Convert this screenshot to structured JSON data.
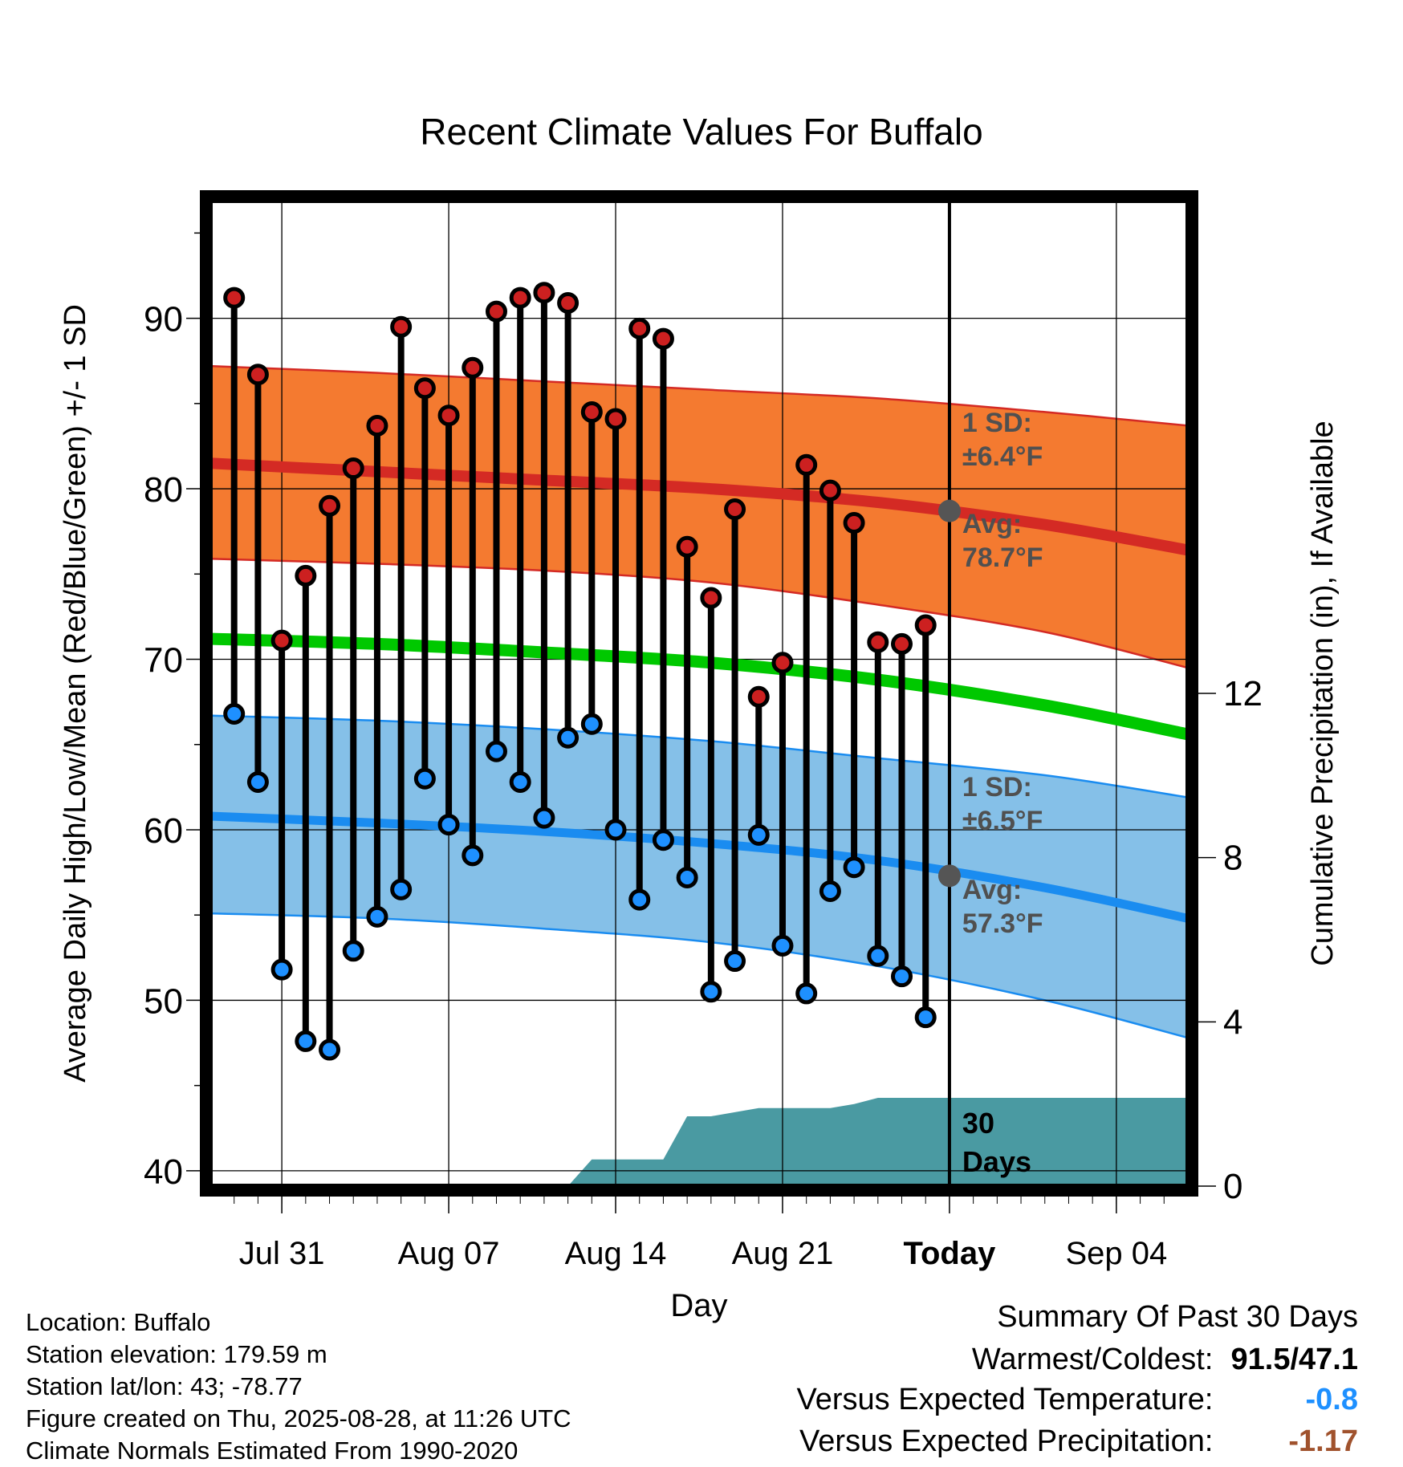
{
  "chart_data": {
    "type": "line",
    "title": "Recent Climate Values For Buffalo",
    "xlabel": "Day",
    "ylabel": "Average Daily High/Low/Mean (Red/Blue/Green) +/- 1 SD",
    "y2label": "Cumulative Precipitation (in), If Available",
    "ylim": [
      39.1,
      96.9
    ],
    "y2lim": [
      0,
      24
    ],
    "y2_ticks": [
      0,
      4,
      8,
      12
    ],
    "y_ticks": [
      40,
      50,
      60,
      70,
      80,
      90
    ],
    "x_range": [
      "2025-07-28",
      "2025-09-07"
    ],
    "x_ticks": [
      {
        "date": "2025-07-31",
        "label": "Jul 31"
      },
      {
        "date": "2025-08-07",
        "label": "Aug 07"
      },
      {
        "date": "2025-08-14",
        "label": "Aug 14"
      },
      {
        "date": "2025-08-21",
        "label": "Aug 21"
      },
      {
        "date": "2025-08-28",
        "label": "Today"
      },
      {
        "date": "2025-09-04",
        "label": "Sep 04"
      }
    ],
    "today": "2025-08-28",
    "grid": true,
    "observed": {
      "dates": [
        "2025-07-29",
        "2025-07-30",
        "2025-07-31",
        "2025-08-01",
        "2025-08-02",
        "2025-08-03",
        "2025-08-04",
        "2025-08-05",
        "2025-08-06",
        "2025-08-07",
        "2025-08-08",
        "2025-08-09",
        "2025-08-10",
        "2025-08-11",
        "2025-08-12",
        "2025-08-13",
        "2025-08-14",
        "2025-08-15",
        "2025-08-16",
        "2025-08-17",
        "2025-08-18",
        "2025-08-19",
        "2025-08-20",
        "2025-08-21",
        "2025-08-22",
        "2025-08-23",
        "2025-08-24",
        "2025-08-25",
        "2025-08-26",
        "2025-08-27"
      ],
      "high": [
        91.2,
        86.7,
        71.1,
        74.9,
        79.0,
        81.2,
        83.7,
        89.5,
        85.9,
        84.3,
        87.1,
        90.4,
        91.2,
        91.5,
        90.9,
        84.5,
        84.1,
        89.4,
        88.8,
        76.6,
        73.6,
        78.8,
        67.8,
        69.8,
        81.4,
        79.9,
        78.0,
        71.0,
        70.9,
        72.0
      ],
      "low": [
        66.8,
        62.8,
        51.8,
        47.6,
        47.1,
        52.9,
        54.9,
        56.5,
        63.0,
        60.3,
        58.5,
        64.6,
        62.8,
        60.7,
        65.4,
        66.2,
        60.0,
        55.9,
        59.4,
        57.2,
        50.5,
        52.3,
        59.7,
        53.2,
        50.4,
        56.4,
        57.8,
        52.6,
        51.4,
        49.0
      ]
    },
    "normal_high": {
      "dates": [
        "2025-07-28",
        "2025-08-04",
        "2025-08-11",
        "2025-08-18",
        "2025-08-25",
        "2025-09-01",
        "2025-09-07"
      ],
      "mean": [
        81.5,
        81.0,
        80.5,
        80.0,
        79.2,
        77.9,
        76.4
      ],
      "upper": [
        87.2,
        86.8,
        86.3,
        85.8,
        85.3,
        84.5,
        83.7
      ],
      "lower": [
        75.9,
        75.6,
        75.2,
        74.5,
        73.2,
        71.6,
        69.5
      ]
    },
    "normal_mean": {
      "dates": [
        "2025-07-28",
        "2025-08-04",
        "2025-08-11",
        "2025-08-18",
        "2025-08-25",
        "2025-09-01",
        "2025-09-07"
      ],
      "values": [
        71.2,
        70.9,
        70.4,
        69.8,
        68.8,
        67.3,
        65.6
      ]
    },
    "normal_low": {
      "dates": [
        "2025-07-28",
        "2025-08-04",
        "2025-08-11",
        "2025-08-18",
        "2025-08-25",
        "2025-09-01",
        "2025-09-07"
      ],
      "mean": [
        60.8,
        60.4,
        59.9,
        59.2,
        58.2,
        56.6,
        54.8
      ],
      "upper": [
        66.7,
        66.4,
        65.9,
        65.2,
        64.2,
        63.2,
        61.9
      ],
      "lower": [
        55.1,
        54.8,
        54.2,
        53.4,
        52.0,
        50.0,
        47.8
      ]
    },
    "precipitation": {
      "dates": [
        "2025-07-28",
        "2025-08-11",
        "2025-08-12",
        "2025-08-13",
        "2025-08-14",
        "2025-08-15",
        "2025-08-16",
        "2025-08-17",
        "2025-08-18",
        "2025-08-19",
        "2025-08-20",
        "2025-08-21",
        "2025-08-22",
        "2025-08-23",
        "2025-08-24",
        "2025-08-25",
        "2025-08-26",
        "2025-09-07"
      ],
      "cumulative": [
        0.0,
        0.0,
        0.0,
        0.65,
        0.65,
        0.65,
        0.65,
        1.7,
        1.7,
        1.8,
        1.9,
        1.9,
        1.9,
        1.9,
        2.0,
        2.15,
        2.15,
        2.15
      ]
    },
    "annotations": {
      "high_sd": "1 SD:",
      "high_sd_value": "±6.4°F",
      "high_avg": "Avg:",
      "high_avg_value": "78.7°F",
      "low_sd": "1 SD:",
      "low_sd_value": "±6.5°F",
      "low_avg": "Avg:",
      "low_avg_value": "57.3°F",
      "days_num": "30",
      "days_word": "Days",
      "today_high_avg": 78.7,
      "today_low_avg": 57.3
    },
    "colors": {
      "high_band": "#f47a30",
      "high_line": "#d42a24",
      "mean_line": "#00c800",
      "low_band": "#85c0e8",
      "low_line": "#1a8cf0",
      "precip": "#4a9aa2",
      "high_dot": "#cc2020",
      "low_dot": "#1e90ff",
      "annotation": "#505050"
    }
  },
  "info": {
    "location": "Location: Buffalo",
    "elevation": "Station elevation: 179.59 m",
    "latlon": "Station lat/lon: 43; -78.77",
    "created": "Figure created on Thu, 2025-08-28, at 11:26 UTC",
    "normals": "Climate Normals Estimated From 1990-2020"
  },
  "summary": {
    "title": "Summary Of Past 30 Days",
    "warmest_label": "Warmest/Coldest:",
    "warmest_value": "91.5/47.1",
    "temp_label": "Versus Expected Temperature:",
    "temp_value": "-0.8",
    "temp_color": "#1e90ff",
    "precip_label": "Versus Expected Precipitation:",
    "precip_value": "-1.17",
    "precip_color": "#a0522d"
  }
}
